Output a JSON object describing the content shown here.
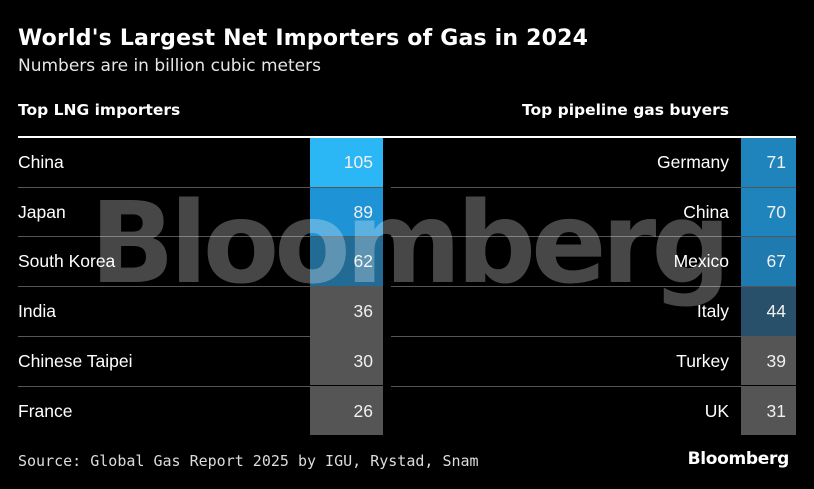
{
  "header": {
    "title": "World's Largest Net Importers of Gas in 2024",
    "subtitle": "Numbers are in billion cubic meters"
  },
  "chart_data": [
    {
      "type": "table",
      "title": "Top LNG importers",
      "categories": [
        "China",
        "Japan",
        "South Korea",
        "India",
        "Chinese Taipei",
        "France"
      ],
      "values": [
        105,
        89,
        62,
        36,
        30,
        26
      ],
      "colors": [
        "#2bb6f5",
        "#1e94d6",
        "#216b94",
        "#555555",
        "#555555",
        "#555555"
      ]
    },
    {
      "type": "table",
      "title": "Top pipeline gas buyers",
      "categories": [
        "Germany",
        "China",
        "Mexico",
        "Italy",
        "Turkey",
        "UK"
      ],
      "values": [
        71,
        70,
        67,
        44,
        39,
        31
      ],
      "colors": [
        "#1f84bb",
        "#1f84bb",
        "#1f7ab0",
        "#28506a",
        "#555555",
        "#555555"
      ]
    }
  ],
  "footer": {
    "source": "Source: Global Gas Report 2025 by IGU, Rystad, Snam",
    "brand": "Bloomberg"
  },
  "watermark": "Bloomberg"
}
